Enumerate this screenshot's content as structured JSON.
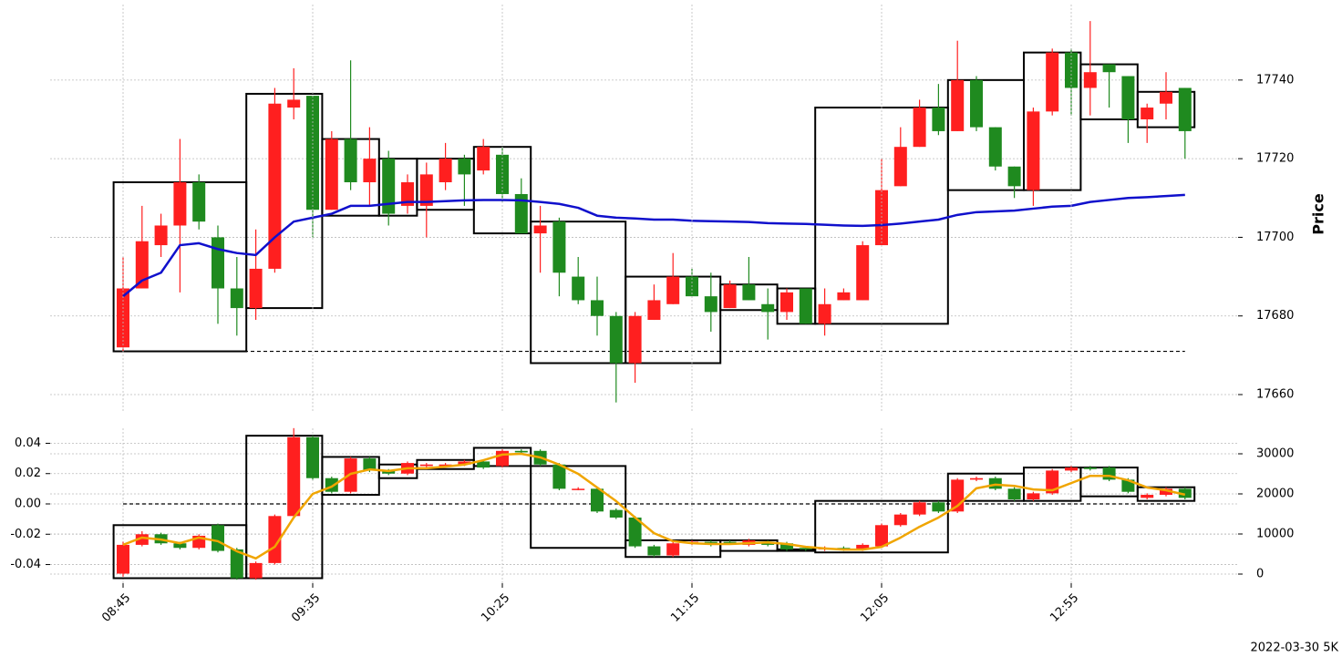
{
  "chart_data": [
    {
      "type": "candlestick",
      "ylabel": "Price",
      "open": [
        17672,
        17687,
        17698,
        17703,
        17714,
        17700,
        17687,
        17682,
        17692,
        17733,
        17736,
        17707,
        17725,
        17714,
        17720,
        17708,
        17708,
        17714,
        17720,
        17717,
        17721,
        17711,
        17701,
        17704,
        17690,
        17684,
        17680,
        17668,
        17679,
        17683,
        17690,
        17685,
        17682,
        17688,
        17683,
        17681,
        17687,
        17678,
        17684,
        17684,
        17698,
        17713,
        17723,
        17733,
        17727,
        17740,
        17728,
        17718,
        17712,
        17732,
        17747,
        17738,
        17744,
        17741,
        17730,
        17734,
        17738
      ],
      "high": [
        17695,
        17708,
        17706,
        17725,
        17716,
        17703,
        17695,
        17702,
        17738,
        17743,
        17736,
        17727,
        17745,
        17728,
        17722,
        17716,
        17719,
        17724,
        17721,
        17725,
        17723,
        17715,
        17708,
        17705,
        17695,
        17690,
        17681,
        17681,
        17688,
        17696,
        17692,
        17691,
        17689,
        17695,
        17687,
        17687,
        17687,
        17687,
        17687,
        17699,
        17720,
        17728,
        17735,
        17739,
        17750,
        17741,
        17728,
        17718,
        17733,
        17748,
        17748,
        17755,
        17744,
        17741,
        17734,
        17742,
        17738
      ],
      "low": [
        17671,
        17687,
        17695,
        17686,
        17702,
        17678,
        17675,
        17679,
        17691,
        17730,
        17700,
        17707,
        17712,
        17708,
        17703,
        17706,
        17700,
        17712,
        17708,
        17716,
        17709,
        17701,
        17691,
        17685,
        17683,
        17675,
        17658,
        17663,
        17679,
        17683,
        17685,
        17676,
        17682,
        17684,
        17674,
        17679,
        17678,
        17675,
        17684,
        17684,
        17698,
        17713,
        17723,
        17726,
        17727,
        17727,
        17717,
        17710,
        17708,
        17731,
        17731,
        17731,
        17733,
        17724,
        17724,
        17730,
        17720
      ],
      "close": [
        17687,
        17699,
        17703,
        17714,
        17704,
        17687,
        17682,
        17692,
        17734,
        17735,
        17707,
        17725,
        17714,
        17720,
        17706,
        17714,
        17716,
        17720,
        17716,
        17723,
        17711,
        17701,
        17703,
        17691,
        17684,
        17680,
        17668,
        17680,
        17684,
        17690,
        17685,
        17681,
        17688,
        17684,
        17681,
        17686,
        17678,
        17683,
        17686,
        17698,
        17712,
        17723,
        17733,
        17727,
        17740,
        17728,
        17718,
        17713,
        17732,
        17747,
        17738,
        17742,
        17742,
        17730,
        17733,
        17737,
        17727
      ],
      "up_color": "#ff1f1f",
      "down_color": "#1f8a1f",
      "series": [
        {
          "color": "#1010cc",
          "values": [
            17685,
            17689,
            17691,
            17698,
            17698.5,
            17697,
            17696,
            17695.5,
            17700,
            17704,
            17705,
            17706,
            17708,
            17708,
            17708.5,
            17709,
            17709,
            17709.2,
            17709.4,
            17709.5,
            17709.5,
            17709.4,
            17709,
            17708.5,
            17707.5,
            17705.5,
            17705,
            17704.8,
            17704.5,
            17704.5,
            17704.2,
            17704.1,
            17704,
            17703.9,
            17703.6,
            17703.5,
            17703.4,
            17703.2,
            17703,
            17702.9,
            17703.1,
            17703.5,
            17704,
            17704.5,
            17705.7,
            17706.4,
            17706.6,
            17706.8,
            17707.3,
            17707.8,
            17708,
            17709,
            17709.5,
            17710,
            17710.2,
            17710.5,
            17710.8
          ]
        }
      ],
      "boxes": [
        {
          "x": [
            0,
            6
          ],
          "y": [
            17671,
            17714
          ]
        },
        {
          "x": [
            7,
            10
          ],
          "y": [
            17682,
            17736.5
          ]
        },
        {
          "x": [
            11,
            13
          ],
          "y": [
            17705.5,
            17725
          ]
        },
        {
          "x": [
            14,
            15
          ],
          "y": [
            17705.5,
            17720
          ]
        },
        {
          "x": [
            16,
            18
          ],
          "y": [
            17707,
            17720
          ]
        },
        {
          "x": [
            19,
            21
          ],
          "y": [
            17701,
            17723
          ]
        },
        {
          "x": [
            22,
            26
          ],
          "y": [
            17668,
            17704
          ]
        },
        {
          "x": [
            27,
            31
          ],
          "y": [
            17668,
            17690
          ]
        },
        {
          "x": [
            32,
            34
          ],
          "y": [
            17681.5,
            17688
          ]
        },
        {
          "x": [
            35,
            36
          ],
          "y": [
            17678,
            17687
          ]
        },
        {
          "x": [
            37,
            43
          ],
          "y": [
            17678,
            17733
          ]
        },
        {
          "x": [
            44,
            47
          ],
          "y": [
            17712,
            17740
          ]
        },
        {
          "x": [
            48,
            50
          ],
          "y": [
            17712,
            17747
          ]
        },
        {
          "x": [
            51,
            53
          ],
          "y": [
            17730,
            17744
          ]
        },
        {
          "x": [
            54,
            56
          ],
          "y": [
            17728,
            17737
          ]
        }
      ],
      "hline": {
        "value": 17671,
        "x": [
          0,
          56
        ]
      },
      "ylim": [
        17655.6,
        17759.2
      ],
      "yticks": [
        17660,
        17680,
        17700,
        17720,
        17740
      ],
      "grid": true
    },
    {
      "type": "candlestick",
      "categories": [
        "08:45",
        null,
        null,
        null,
        null,
        null,
        null,
        null,
        null,
        null,
        "09:35",
        null,
        null,
        null,
        null,
        null,
        null,
        null,
        null,
        null,
        "10:25",
        null,
        null,
        null,
        null,
        null,
        null,
        null,
        null,
        null,
        "11:15",
        null,
        null,
        null,
        null,
        null,
        null,
        null,
        null,
        null,
        "12:05",
        null,
        null,
        null,
        null,
        null,
        null,
        null,
        null,
        null,
        "12:55",
        null,
        null,
        null,
        null,
        null,
        null
      ],
      "open": [
        -0.046,
        -0.027,
        -0.02,
        -0.026,
        -0.029,
        -0.014,
        -0.03,
        -0.049,
        -0.039,
        -0.008,
        0.044,
        0.017,
        0.008,
        0.03,
        0.022,
        0.02,
        0.025,
        0.025,
        0.026,
        0.028,
        0.025,
        0.035,
        0.035,
        0.026,
        0.01,
        0.01,
        -0.004,
        -0.009,
        -0.028,
        -0.034,
        -0.026,
        -0.025,
        -0.025,
        -0.027,
        -0.025,
        -0.026,
        -0.029,
        -0.03,
        -0.029,
        -0.03,
        -0.028,
        -0.014,
        -0.007,
        0.001,
        -0.005,
        0.016,
        0.017,
        0.01,
        0.003,
        0.007,
        0.022,
        0.024,
        0.024,
        0.016,
        0.004,
        0.006,
        0.01
      ],
      "high": [
        -0.025,
        -0.018,
        -0.019,
        -0.025,
        -0.02,
        -0.013,
        -0.029,
        -0.038,
        -0.007,
        0.05,
        0.045,
        0.018,
        0.031,
        0.031,
        0.023,
        0.028,
        0.027,
        0.027,
        0.029,
        0.029,
        0.036,
        0.036,
        0.036,
        0.027,
        0.011,
        0.011,
        -0.003,
        -0.008,
        -0.027,
        -0.025,
        -0.024,
        -0.024,
        -0.024,
        -0.023,
        -0.024,
        -0.025,
        -0.028,
        -0.028,
        -0.028,
        -0.026,
        -0.013,
        -0.006,
        0.002,
        0.002,
        0.017,
        0.018,
        0.018,
        0.011,
        0.008,
        0.023,
        0.025,
        0.025,
        0.025,
        0.017,
        0.007,
        0.011,
        0.011
      ],
      "low": [
        -0.048,
        -0.028,
        -0.027,
        -0.03,
        -0.03,
        -0.032,
        -0.05,
        -0.05,
        -0.04,
        -0.009,
        0.016,
        0.007,
        0.007,
        0.021,
        0.019,
        0.019,
        0.024,
        0.024,
        0.025,
        0.023,
        0.024,
        0.033,
        0.025,
        0.009,
        0.009,
        -0.006,
        -0.01,
        -0.029,
        -0.035,
        -0.035,
        -0.027,
        -0.028,
        -0.027,
        -0.028,
        -0.028,
        -0.031,
        -0.031,
        -0.031,
        -0.031,
        -0.031,
        -0.029,
        -0.015,
        -0.008,
        -0.006,
        -0.006,
        0.015,
        0.009,
        0.002,
        0.002,
        0.006,
        0.021,
        0.022,
        0.015,
        0.007,
        0.003,
        0.005,
        0.003
      ],
      "close": [
        -0.027,
        -0.02,
        -0.026,
        -0.029,
        -0.021,
        -0.031,
        -0.049,
        -0.039,
        -0.008,
        0.044,
        0.017,
        0.008,
        0.03,
        0.022,
        0.02,
        0.027,
        0.026,
        0.026,
        0.028,
        0.024,
        0.035,
        0.034,
        0.026,
        0.01,
        0.01,
        -0.005,
        -0.009,
        -0.028,
        -0.034,
        -0.026,
        -0.025,
        -0.027,
        -0.026,
        -0.024,
        -0.027,
        -0.03,
        -0.03,
        -0.029,
        -0.03,
        -0.027,
        -0.014,
        -0.007,
        0.001,
        -0.005,
        0.016,
        0.017,
        0.01,
        0.003,
        0.007,
        0.022,
        0.024,
        0.023,
        0.016,
        0.008,
        0.006,
        0.01,
        0.004
      ],
      "up_color": "#ff1f1f",
      "down_color": "#1f8a1f",
      "series": [
        {
          "color": "#f0a500",
          "axis": "y2",
          "values": [
            7300,
            9100,
            8600,
            7700,
            9100,
            8200,
            5700,
            3900,
            6800,
            14100,
            20000,
            21800,
            25000,
            26100,
            25700,
            26400,
            26400,
            26800,
            27300,
            28400,
            29800,
            30000,
            29100,
            27300,
            25000,
            21600,
            18200,
            14100,
            10200,
            8200,
            7700,
            7500,
            7500,
            7700,
            7900,
            7500,
            6800,
            6400,
            6100,
            6100,
            6800,
            9100,
            11800,
            14100,
            17000,
            21400,
            22300,
            22000,
            21100,
            20900,
            22700,
            24500,
            24500,
            23400,
            21600,
            20900,
            19800
          ]
        }
      ],
      "boxes": [
        {
          "x": [
            0,
            6
          ],
          "y": [
            -0.049,
            -0.014
          ]
        },
        {
          "x": [
            7,
            10
          ],
          "y": [
            -0.049,
            0.045
          ]
        },
        {
          "x": [
            11,
            13
          ],
          "y": [
            0.006,
            0.031
          ]
        },
        {
          "x": [
            14,
            15
          ],
          "y": [
            0.017,
            0.026
          ]
        },
        {
          "x": [
            16,
            18
          ],
          "y": [
            0.023,
            0.029
          ]
        },
        {
          "x": [
            19,
            21
          ],
          "y": [
            0.025,
            0.037
          ]
        },
        {
          "x": [
            22,
            26
          ],
          "y": [
            -0.029,
            0.025
          ]
        },
        {
          "x": [
            27,
            31
          ],
          "y": [
            -0.035,
            -0.024
          ]
        },
        {
          "x": [
            32,
            34
          ],
          "y": [
            -0.031,
            -0.024
          ]
        },
        {
          "x": [
            35,
            36
          ],
          "y": [
            -0.031,
            -0.03
          ]
        },
        {
          "x": [
            37,
            43
          ],
          "y": [
            -0.032,
            0.002
          ]
        },
        {
          "x": [
            44,
            47
          ],
          "y": [
            0.002,
            0.02
          ]
        },
        {
          "x": [
            48,
            50
          ],
          "y": [
            0.002,
            0.024
          ]
        },
        {
          "x": [
            51,
            53
          ],
          "y": [
            0.005,
            0.024
          ]
        },
        {
          "x": [
            54,
            56
          ],
          "y": [
            0.002,
            0.011
          ]
        }
      ],
      "hline": {
        "value": 0,
        "x": [
          0,
          56
        ]
      },
      "ylim": [
        -0.0523,
        0.0499
      ],
      "yticks": [
        -0.04,
        -0.02,
        {
          "value": 0,
          "label": "0.00"
        },
        0.02,
        0.04
      ],
      "y2lim": [
        -2273,
        36364
      ],
      "y2ticks": [
        0,
        10000,
        20000,
        30000
      ],
      "grid": true
    }
  ],
  "footnote": "2022-03-30 5K"
}
